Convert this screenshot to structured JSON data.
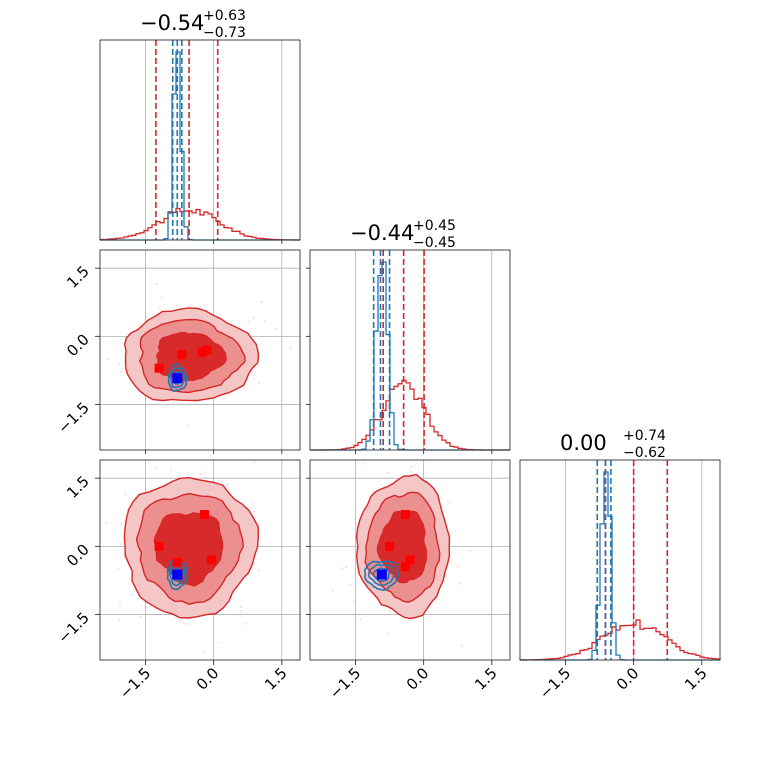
{
  "chart_data": {
    "type": "corner",
    "parameters": 3,
    "grid": true,
    "colors": {
      "set_a": "#d62728",
      "set_b": "#1f77b4",
      "marker_a": "#ff0000",
      "marker_b": "#0000ff"
    },
    "axis_range": [
      -2.5,
      1.9
    ],
    "ticks": [
      -1.5,
      0.0,
      1.5
    ],
    "tick_labels": [
      "−1.5",
      "0.0",
      "1.5"
    ],
    "titles": [
      {
        "value": "−0.54",
        "upper": "+0.63",
        "lower": "−0.73"
      },
      {
        "value": "−0.44",
        "upper": "+0.45",
        "lower": "−0.45"
      },
      {
        "value": "0.00",
        "upper": "+0.74",
        "lower": "−0.62"
      }
    ],
    "marginals": [
      {
        "quantiles_red": [
          -1.27,
          -0.54,
          0.09
        ],
        "quantiles_blue": [
          -0.9,
          -0.8,
          -0.7
        ],
        "red_center": -0.54,
        "red_sigma": 0.65,
        "blue_center": -0.8,
        "blue_sigma": 0.08,
        "blue_peak_ratio": 7.0
      },
      {
        "quantiles_red": [
          -0.89,
          -0.44,
          0.01
        ],
        "quantiles_blue": [
          -1.1,
          -0.95,
          -0.75
        ],
        "red_center": -0.44,
        "red_sigma": 0.45,
        "blue_center": -0.92,
        "blue_sigma": 0.12,
        "blue_peak_ratio": 2.7
      },
      {
        "quantiles_red": [
          -0.62,
          0.0,
          0.74
        ],
        "quantiles_blue": [
          -0.8,
          -0.62,
          -0.5
        ],
        "red_center": 0.0,
        "red_sigma": 0.68,
        "blue_center": -0.62,
        "blue_sigma": 0.1,
        "blue_peak_ratio": 5.5
      }
    ],
    "joints": [
      {
        "row": 1,
        "col": 0,
        "red_center": [
          -0.54,
          -0.44
        ],
        "red_sigma": [
          0.65,
          0.45
        ],
        "blue_center": [
          -0.8,
          -0.92
        ],
        "blue_sigma": [
          0.09,
          0.13
        ],
        "red_markers": [
          [
            -0.15,
            -0.3
          ],
          [
            -0.25,
            -0.35
          ],
          [
            -0.7,
            -0.4
          ],
          [
            -1.2,
            -0.7
          ]
        ],
        "blue_markers": [
          [
            -0.8,
            -0.92
          ]
        ]
      },
      {
        "row": 2,
        "col": 0,
        "red_center": [
          -0.54,
          0.0
        ],
        "red_sigma": [
          0.65,
          0.68
        ],
        "blue_center": [
          -0.8,
          -0.62
        ],
        "blue_sigma": [
          0.1,
          0.14
        ],
        "red_markers": [
          [
            -0.2,
            0.7
          ],
          [
            -1.2,
            0.0
          ],
          [
            -0.05,
            -0.3
          ],
          [
            -0.8,
            -0.35
          ]
        ],
        "blue_markers": [
          [
            -0.8,
            -0.62
          ]
        ]
      },
      {
        "row": 2,
        "col": 1,
        "red_center": [
          -0.44,
          0.0
        ],
        "red_sigma": [
          0.45,
          0.68
        ],
        "blue_center": [
          -0.92,
          -0.62
        ],
        "blue_sigma": [
          0.17,
          0.14
        ],
        "red_markers": [
          [
            -0.4,
            0.7
          ],
          [
            -0.75,
            0.0
          ],
          [
            -0.3,
            -0.3
          ],
          [
            -0.4,
            -0.45
          ]
        ],
        "blue_markers": [
          [
            -0.92,
            -0.62
          ]
        ]
      }
    ]
  }
}
